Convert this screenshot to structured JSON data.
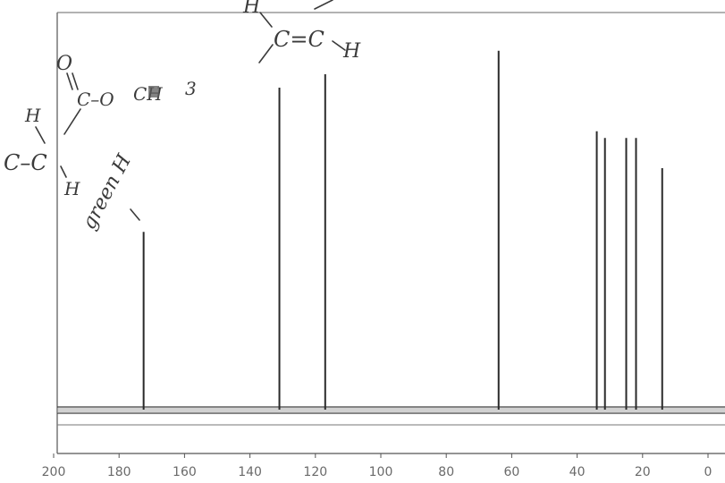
{
  "chart_data": {
    "type": "nmr-stick-spectrum",
    "x_axis": {
      "reversed": true,
      "range": [
        200,
        0
      ],
      "tick_labels": [
        "200",
        "180",
        "160",
        "140",
        "120",
        "100",
        "80",
        "60",
        "40",
        "20",
        "0"
      ]
    },
    "peaks": [
      {
        "shift": 172.5,
        "intensity": 0.53
      },
      {
        "shift": 131.0,
        "intensity": 0.96
      },
      {
        "shift": 117.0,
        "intensity": 1.0
      },
      {
        "shift": 64.0,
        "intensity": 1.07
      },
      {
        "shift": 34.0,
        "intensity": 0.83
      },
      {
        "shift": 31.5,
        "intensity": 0.81
      },
      {
        "shift": 25.0,
        "intensity": 0.81
      },
      {
        "shift": 22.0,
        "intensity": 0.81
      },
      {
        "shift": 14.0,
        "intensity": 0.72
      }
    ],
    "grid": false,
    "legend": "none"
  },
  "annotations": {
    "alkene_h_top": "H",
    "alkene_group": "C=C",
    "alkene_h_right": "H",
    "ester_o": "O",
    "ester_group": "C–O",
    "ester_scribble": "CH",
    "ester_subscript": "3",
    "carbon_h_top": "H",
    "carbon_left": "C–C",
    "carbon_h_bottom": "H",
    "peak_label": "green H"
  },
  "colors": {
    "axis": "#555555",
    "peak": "#2a2a2a",
    "baseline": "#3a3a3a",
    "ink": "#3a3a3a"
  }
}
